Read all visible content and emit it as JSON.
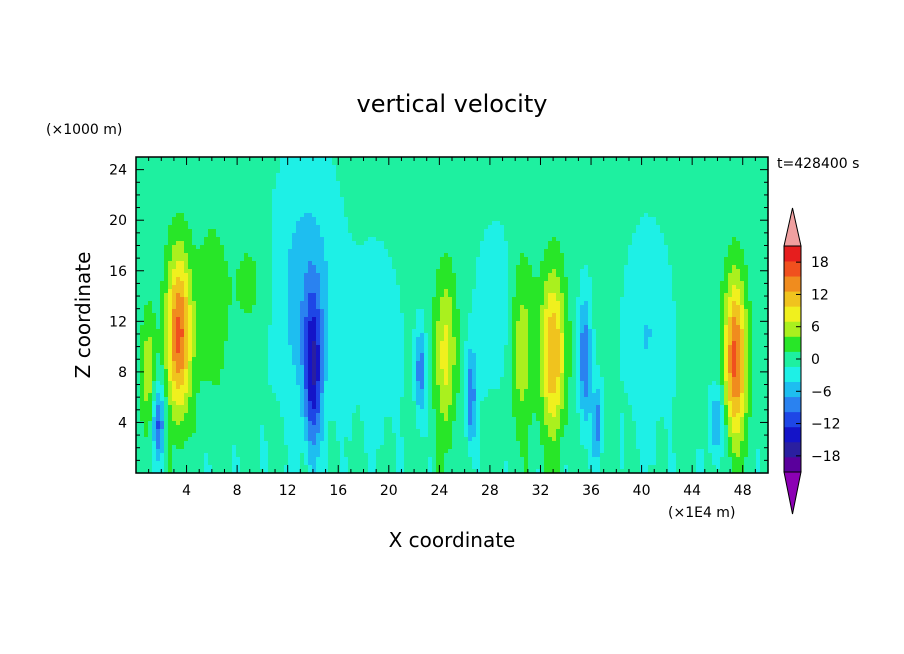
{
  "chart_data": {
    "type": "heatmap",
    "title": "vertical velocity",
    "xlabel": "X coordinate",
    "ylabel": "Z coordinate",
    "x_unit": "(×1E4 m)",
    "y_unit": "(×1000 m)",
    "time_label": "t=428400 s",
    "xlim": [
      0,
      50
    ],
    "ylim": [
      0,
      25
    ],
    "x_ticks": [
      4,
      8,
      12,
      16,
      20,
      24,
      28,
      32,
      36,
      40,
      44,
      48
    ],
    "y_ticks": [
      4,
      8,
      12,
      16,
      20,
      24
    ],
    "colorbar": {
      "levels": [
        -21,
        -18,
        -15,
        -12,
        -9,
        -6,
        -3,
        0,
        3,
        6,
        9,
        12,
        15,
        18,
        21
      ],
      "labels": [
        -18,
        -12,
        -6,
        0,
        6,
        12,
        18
      ],
      "colors": [
        "#5a009c",
        "#2a1fa0",
        "#1414c8",
        "#1e46e6",
        "#2a82f0",
        "#1ebef0",
        "#1ef0e6",
        "#1ef0a0",
        "#28e628",
        "#aaf01e",
        "#f0f01e",
        "#f0c31e",
        "#f08c1e",
        "#f0501e",
        "#e61e1e"
      ],
      "under_color": "#8c00b4",
      "over_color": "#f0a0a0"
    },
    "features": [
      {
        "x": 3.4,
        "z": 11.0,
        "amp": 18,
        "wx": 1.0,
        "wz": 6.5
      },
      {
        "x": 47.4,
        "z": 9.0,
        "amp": 18,
        "wx": 0.9,
        "wz": 6.5
      },
      {
        "x": 33.0,
        "z": 9.5,
        "amp": 14,
        "wx": 1.0,
        "wz": 6.5
      },
      {
        "x": 30.5,
        "z": 10.0,
        "amp": 7,
        "wx": 1.0,
        "wz": 7.0
      },
      {
        "x": 24.5,
        "z": 9.5,
        "amp": 9,
        "wx": 0.9,
        "wz": 6.5
      },
      {
        "x": 6.0,
        "z": 13.0,
        "amp": 5,
        "wx": 1.2,
        "wz": 6.5
      },
      {
        "x": 9.0,
        "z": 15.0,
        "amp": 3,
        "wx": 1.5,
        "wz": 4.0
      },
      {
        "x": 1.0,
        "z": 8.0,
        "amp": 7,
        "wx": 0.6,
        "wz": 5.0
      },
      {
        "x": 14.0,
        "z": 8.0,
        "amp": -13,
        "wx": 0.7,
        "wz": 6.0
      },
      {
        "x": 13.5,
        "z": 14.0,
        "amp": -6,
        "wx": 2.5,
        "wz": 10.0
      },
      {
        "x": 1.8,
        "z": 4.0,
        "amp": -11,
        "wx": 0.5,
        "wz": 3.0
      },
      {
        "x": 22.5,
        "z": 8.0,
        "amp": -9,
        "wx": 0.4,
        "wz": 3.5
      },
      {
        "x": 26.5,
        "z": 6.0,
        "amp": -10,
        "wx": 0.4,
        "wz": 4.0
      },
      {
        "x": 35.5,
        "z": 9.0,
        "amp": -10,
        "wx": 0.5,
        "wz": 5.0
      },
      {
        "x": 36.5,
        "z": 4.0,
        "amp": -9,
        "wx": 0.4,
        "wz": 3.0
      },
      {
        "x": 46.0,
        "z": 4.0,
        "amp": -8,
        "wx": 0.6,
        "wz": 3.0
      },
      {
        "x": 40.5,
        "z": 11.0,
        "amp": -4,
        "wx": 1.8,
        "wz": 8.0
      },
      {
        "x": 28.5,
        "z": 13.0,
        "amp": -4,
        "wx": 1.5,
        "wz": 6.0
      },
      {
        "x": 19.0,
        "z": 10.0,
        "amp": -3,
        "wx": 2.0,
        "wz": 8.0
      }
    ]
  }
}
